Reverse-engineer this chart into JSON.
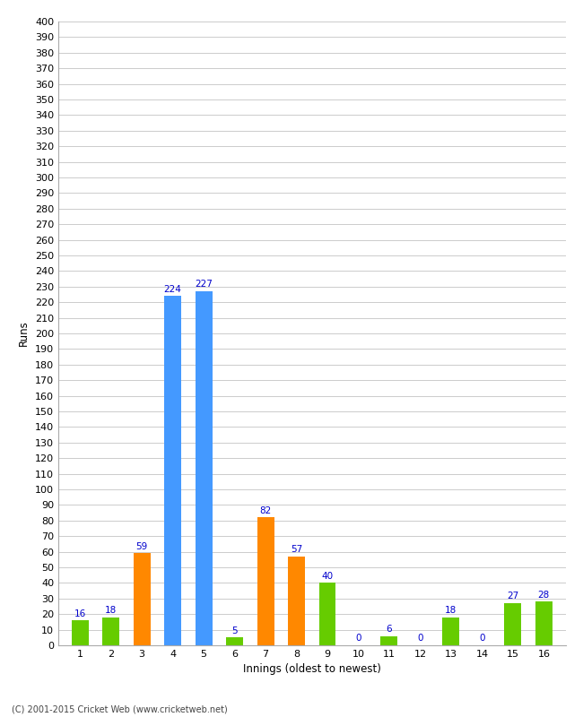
{
  "innings": [
    1,
    2,
    3,
    4,
    5,
    6,
    7,
    8,
    9,
    10,
    11,
    12,
    13,
    14,
    15,
    16
  ],
  "values": [
    16,
    18,
    59,
    224,
    227,
    5,
    82,
    57,
    40,
    0,
    6,
    0,
    18,
    0,
    27,
    28
  ],
  "colors": [
    "#66cc00",
    "#66cc00",
    "#ff8800",
    "#4499ff",
    "#4499ff",
    "#66cc00",
    "#ff8800",
    "#ff8800",
    "#66cc00",
    "#66cc00",
    "#66cc00",
    "#66cc00",
    "#66cc00",
    "#66cc00",
    "#66cc00",
    "#66cc00"
  ],
  "xlabel": "Innings (oldest to newest)",
  "ylabel": "Runs",
  "ylim": [
    0,
    400
  ],
  "ytick_step": 10,
  "footer": "(C) 2001-2015 Cricket Web (www.cricketweb.net)",
  "background_color": "#ffffff",
  "grid_color": "#cccccc",
  "label_color": "#0000cc",
  "bar_width": 0.55
}
